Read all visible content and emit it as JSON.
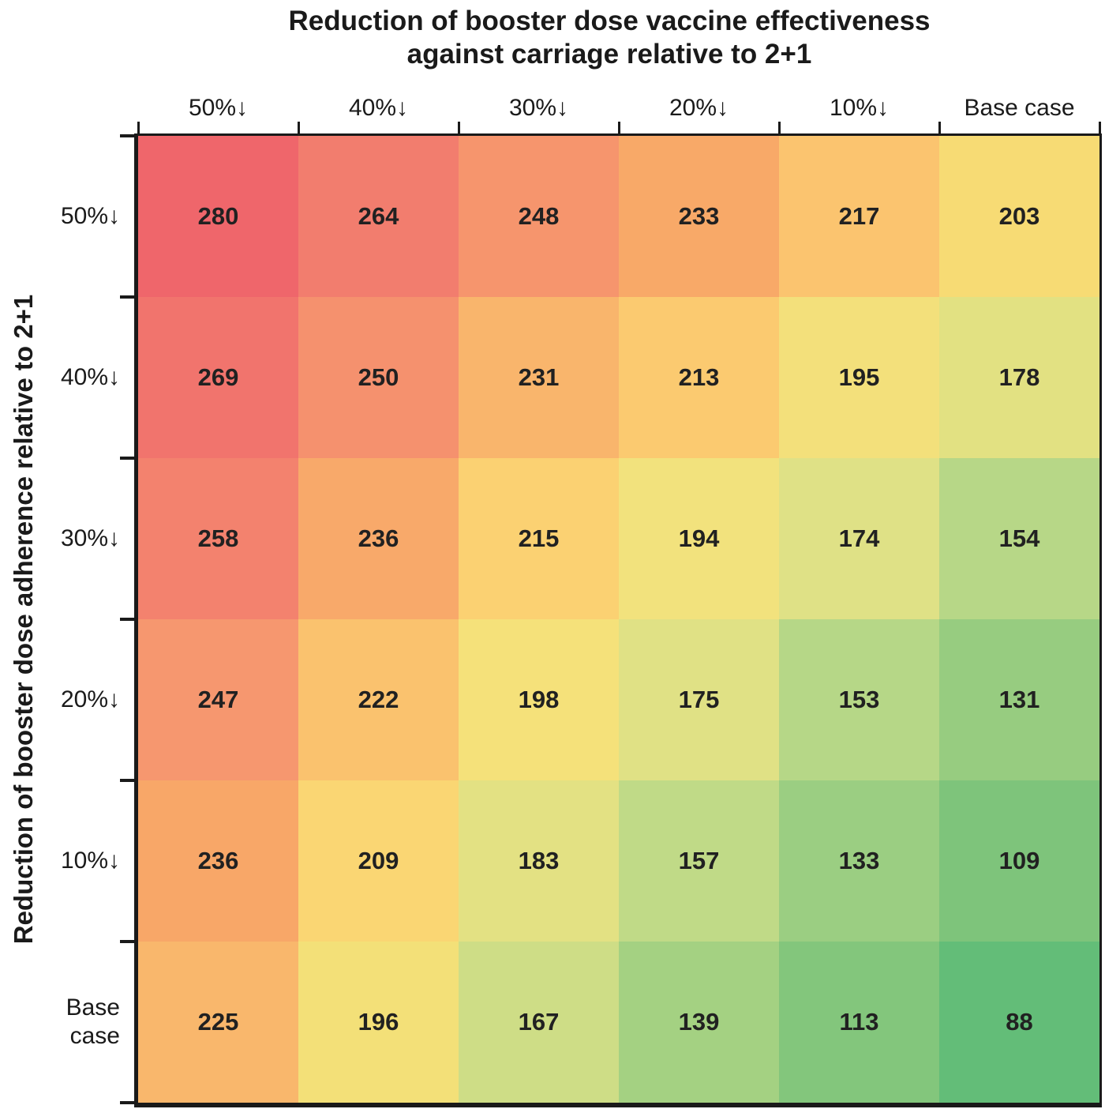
{
  "title": {
    "line1": "Reduction of booster dose vaccine effectiveness",
    "line2": "against carriage relative to 2+1"
  },
  "x_axis": {
    "title": "Reduction of booster dose vaccine effectiveness against carriage relative to 2+1",
    "tick_labels": [
      "50%↓",
      "40%↓",
      "30%↓",
      "20%↓",
      "10%↓",
      "Base case"
    ]
  },
  "y_axis": {
    "title": "Reduction of booster dose adherence relative to 2+1",
    "tick_labels": [
      "50%↓",
      "40%↓",
      "30%↓",
      "20%↓",
      "10%↓",
      "Base case"
    ]
  },
  "chart_data": {
    "type": "heatmap",
    "title": "Reduction of booster dose vaccine effectiveness against carriage relative to 2+1",
    "xlabel": "Reduction of booster dose vaccine effectiveness against carriage relative to 2+1",
    "ylabel": "Reduction of booster dose adherence relative to 2+1",
    "x_categories": [
      "50%↓",
      "40%↓",
      "30%↓",
      "20%↓",
      "10%↓",
      "Base case"
    ],
    "y_categories": [
      "50%↓",
      "40%↓",
      "30%↓",
      "20%↓",
      "10%↓",
      "Base case"
    ],
    "values": [
      [
        280,
        264,
        248,
        233,
        217,
        203
      ],
      [
        269,
        250,
        231,
        213,
        195,
        178
      ],
      [
        258,
        236,
        215,
        194,
        174,
        154
      ],
      [
        247,
        222,
        198,
        175,
        153,
        131
      ],
      [
        236,
        209,
        183,
        157,
        133,
        109
      ],
      [
        225,
        196,
        167,
        139,
        113,
        88
      ]
    ],
    "cell_colors": [
      [
        "#ef666b",
        "#f27d6e",
        "#f6956d",
        "#f8a968",
        "#fbc46f",
        "#f7db74"
      ],
      [
        "#f1746d",
        "#f5916e",
        "#f9b56c",
        "#fbca70",
        "#f3e07b",
        "#e2e182"
      ],
      [
        "#f3826e",
        "#f8a96a",
        "#fbd172",
        "#f2e27d",
        "#dfe186",
        "#b7d787"
      ],
      [
        "#f6976f",
        "#fac26e",
        "#f5e17a",
        "#e0e185",
        "#b6d787",
        "#97cc80"
      ],
      [
        "#f8a768",
        "#fad673",
        "#e3e183",
        "#c0da87",
        "#9bce82",
        "#7ec47b"
      ],
      [
        "#f9b76c",
        "#f3e078",
        "#cedd86",
        "#a4d182",
        "#83c67c",
        "#63bd78"
      ]
    ],
    "value_range": [
      88,
      280
    ],
    "colormap_description": "diverging red-yellow-green; high values red, low values green",
    "grid": false,
    "legend": false
  },
  "colors": {
    "cell_text": "#212121",
    "axis": "#1a1a1a",
    "background": "#ffffff"
  }
}
